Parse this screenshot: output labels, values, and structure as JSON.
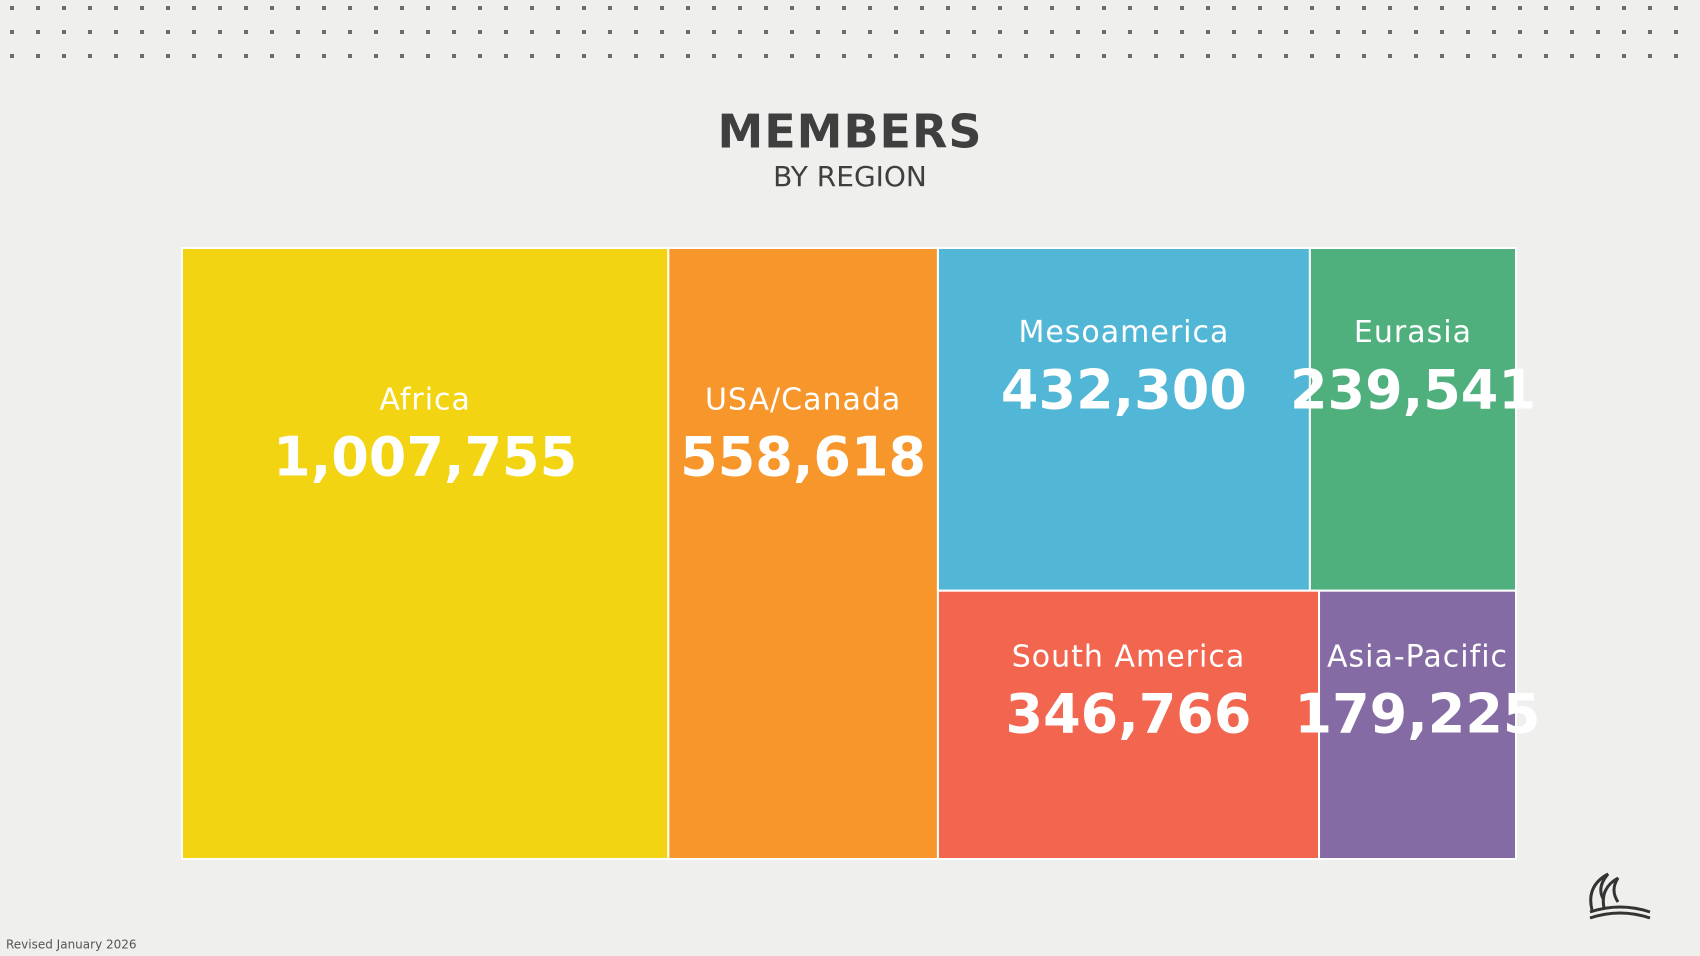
{
  "chart_data": {
    "type": "treemap",
    "title": "MEMBERS",
    "subtitle": "BY REGION",
    "categories": [
      "Africa",
      "USA/Canada",
      "Mesoamerica",
      "Eurasia",
      "South America",
      "Asia-Pacific"
    ],
    "values": [
      1007755,
      558618,
      432300,
      239541,
      346766,
      179225
    ],
    "value_labels": [
      "1,007,755",
      "558,618",
      "432,300",
      "239,541",
      "346,766",
      "179,225"
    ],
    "colors": [
      "#f2d413",
      "#f7962a",
      "#52b7d6",
      "#4fb07e",
      "#f26650",
      "#846ba3"
    ],
    "footnote": "Revised January 2026"
  }
}
